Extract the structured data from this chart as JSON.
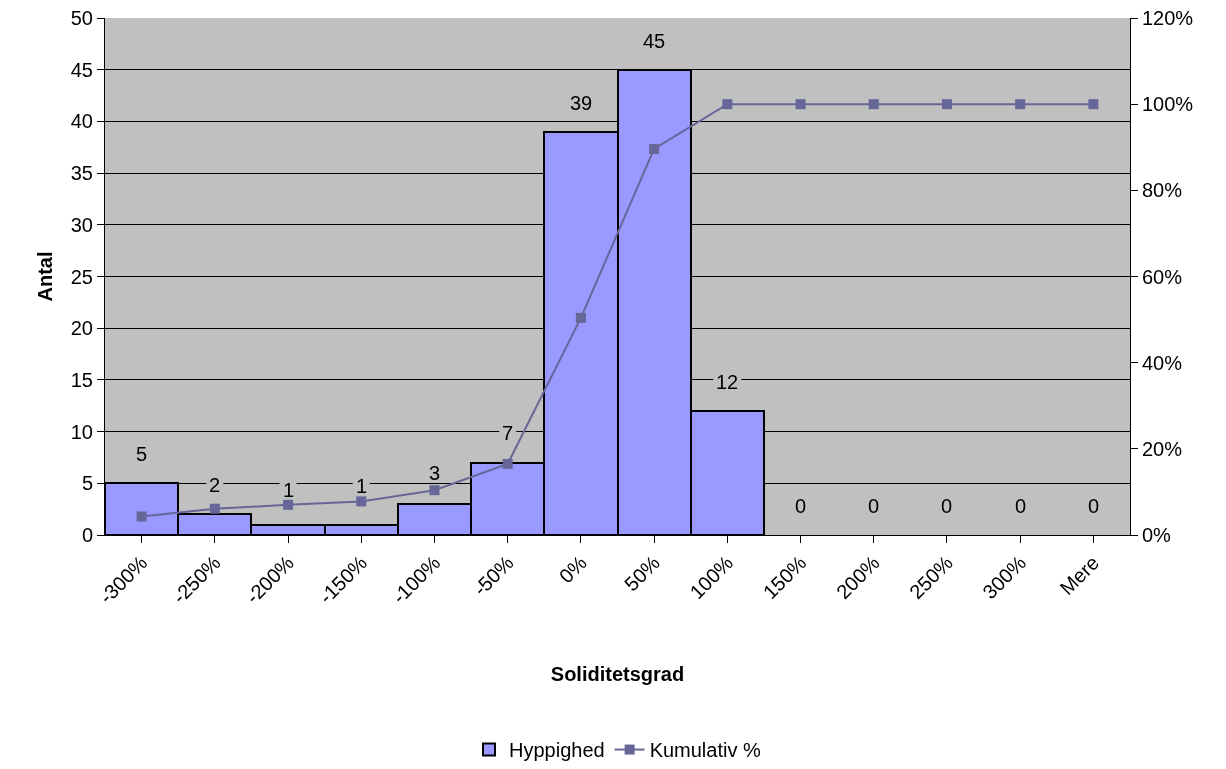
{
  "chart_data": {
    "type": "bar",
    "xlabel": "Soliditetsgrad",
    "ylabel": "Antal",
    "categories": [
      "-300%",
      "-250%",
      "-200%",
      "-150%",
      "-100%",
      "-50%",
      "0%",
      "50%",
      "100%",
      "150%",
      "200%",
      "250%",
      "300%",
      "Mere"
    ],
    "series": [
      {
        "name": "Hyppighed",
        "color": "#9999ff",
        "values": [
          5,
          2,
          1,
          1,
          3,
          7,
          39,
          45,
          12,
          0,
          0,
          0,
          0,
          0
        ],
        "value_labels": [
          "5",
          "2",
          "1",
          "1",
          "3",
          "7",
          "39",
          "45",
          "12",
          "0",
          "0",
          "0",
          "0",
          "0"
        ]
      },
      {
        "name": "Kumulativ %",
        "type": "line",
        "axis": "y2",
        "color": "#666699",
        "marker": "square",
        "line_style": "solid",
        "values": [
          4.3,
          6.1,
          7.0,
          7.8,
          10.4,
          16.5,
          50.4,
          89.6,
          100,
          100,
          100,
          100,
          100,
          100
        ]
      }
    ],
    "ylim": [
      0,
      50
    ],
    "yticks": [
      0,
      5,
      10,
      15,
      20,
      25,
      30,
      35,
      40,
      45,
      50
    ],
    "y2lim": [
      0,
      120
    ],
    "y2ticks": [
      {
        "value": 0,
        "label": "0%"
      },
      {
        "value": 20,
        "label": "20%"
      },
      {
        "value": 40,
        "label": "40%"
      },
      {
        "value": 60,
        "label": "60%"
      },
      {
        "value": 80,
        "label": "80%"
      },
      {
        "value": 100,
        "label": "100%"
      },
      {
        "value": 120,
        "label": "120%"
      }
    ],
    "grid": "y",
    "legend": "bottom"
  }
}
